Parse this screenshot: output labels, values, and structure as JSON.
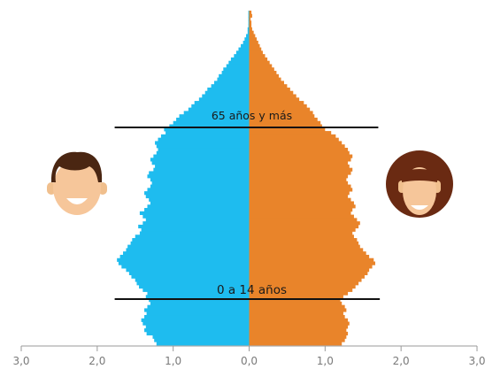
{
  "chart_data": {
    "type": "bar",
    "orientation": "horizontal-pyramid",
    "x_ticks": [
      "3,0",
      "2,0",
      "1,0",
      "0,0",
      "1,0",
      "2,0",
      "3,0"
    ],
    "xlim": [
      -3.0,
      3.0
    ],
    "annotations": [
      {
        "label": "65 años y más",
        "value_left": -1.77,
        "value_right": 1.7
      },
      {
        "label": "0 a 14 años",
        "value_left": -1.77,
        "value_right": 1.72
      }
    ],
    "series": [
      {
        "side": "left",
        "color": "#1ebcef",
        "icon": "man-face-icon",
        "values": [
          1.22,
          1.25,
          1.27,
          1.35,
          1.38,
          1.36,
          1.4,
          1.42,
          1.38,
          1.35,
          1.38,
          1.34,
          1.3,
          1.32,
          1.36,
          1.34,
          1.4,
          1.45,
          1.48,
          1.5,
          1.55,
          1.58,
          1.62,
          1.68,
          1.72,
          1.74,
          1.7,
          1.66,
          1.62,
          1.6,
          1.56,
          1.54,
          1.5,
          1.44,
          1.42,
          1.46,
          1.4,
          1.36,
          1.4,
          1.44,
          1.38,
          1.34,
          1.3,
          1.32,
          1.36,
          1.38,
          1.34,
          1.3,
          1.28,
          1.3,
          1.34,
          1.32,
          1.26,
          1.24,
          1.28,
          1.3,
          1.26,
          1.22,
          1.2,
          1.22,
          1.24,
          1.2,
          1.16,
          1.1,
          1.12,
          1.05,
          1.0,
          0.96,
          0.92,
          0.86,
          0.8,
          0.76,
          0.72,
          0.66,
          0.62,
          0.58,
          0.55,
          0.5,
          0.46,
          0.42,
          0.4,
          0.36,
          0.34,
          0.3,
          0.27,
          0.24,
          0.2,
          0.17,
          0.14,
          0.11,
          0.08,
          0.06,
          0.04,
          0.02,
          0.02,
          0.01,
          0.01,
          0.01,
          0.01,
          0.01
        ]
      },
      {
        "side": "right",
        "color": "#e9842a",
        "icon": "woman-face-icon",
        "values": [
          1.22,
          1.26,
          1.28,
          1.3,
          1.28,
          1.3,
          1.32,
          1.3,
          1.26,
          1.24,
          1.28,
          1.26,
          1.22,
          1.2,
          1.24,
          1.3,
          1.36,
          1.4,
          1.44,
          1.48,
          1.52,
          1.56,
          1.58,
          1.62,
          1.66,
          1.64,
          1.58,
          1.54,
          1.5,
          1.46,
          1.44,
          1.42,
          1.38,
          1.36,
          1.4,
          1.44,
          1.46,
          1.42,
          1.38,
          1.34,
          1.36,
          1.4,
          1.38,
          1.34,
          1.3,
          1.32,
          1.36,
          1.34,
          1.3,
          1.28,
          1.3,
          1.34,
          1.36,
          1.32,
          1.3,
          1.34,
          1.36,
          1.32,
          1.3,
          1.26,
          1.22,
          1.18,
          1.14,
          1.08,
          1.0,
          0.96,
          0.94,
          0.9,
          0.86,
          0.84,
          0.8,
          0.76,
          0.72,
          0.66,
          0.62,
          0.58,
          0.54,
          0.5,
          0.46,
          0.42,
          0.39,
          0.36,
          0.33,
          0.3,
          0.27,
          0.24,
          0.21,
          0.18,
          0.16,
          0.14,
          0.12,
          0.1,
          0.08,
          0.06,
          0.04,
          0.03,
          0.03,
          0.02,
          0.04,
          0.03
        ]
      }
    ]
  }
}
